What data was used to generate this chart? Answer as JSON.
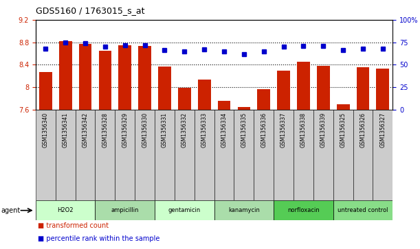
{
  "title": "GDS5160 / 1763015_s_at",
  "samples": [
    "GSM1356340",
    "GSM1356341",
    "GSM1356342",
    "GSM1356328",
    "GSM1356329",
    "GSM1356330",
    "GSM1356331",
    "GSM1356332",
    "GSM1356333",
    "GSM1356334",
    "GSM1356335",
    "GSM1356336",
    "GSM1356337",
    "GSM1356338",
    "GSM1356339",
    "GSM1356325",
    "GSM1356326",
    "GSM1356327"
  ],
  "bar_values": [
    8.27,
    8.82,
    8.77,
    8.65,
    8.75,
    8.73,
    8.37,
    7.99,
    8.13,
    7.76,
    7.65,
    7.97,
    8.29,
    8.45,
    8.38,
    7.7,
    8.35,
    8.33
  ],
  "dot_values": [
    68,
    75,
    74,
    70,
    72,
    72,
    66,
    65,
    67,
    65,
    62,
    65,
    70,
    71,
    71,
    66,
    68,
    68
  ],
  "ylim_left": [
    7.6,
    9.2
  ],
  "ylim_right": [
    0,
    100
  ],
  "yticks_left": [
    7.6,
    8.0,
    8.4,
    8.8,
    9.2
  ],
  "yticks_right": [
    0,
    25,
    50,
    75,
    100
  ],
  "bar_color": "#CC2200",
  "dot_color": "#0000CC",
  "agent_groups": [
    {
      "label": "H2O2",
      "start": 0,
      "end": 3,
      "color": "#CCFFCC"
    },
    {
      "label": "ampicillin",
      "start": 3,
      "end": 6,
      "color": "#AADDAA"
    },
    {
      "label": "gentamicin",
      "start": 6,
      "end": 9,
      "color": "#CCFFCC"
    },
    {
      "label": "kanamycin",
      "start": 9,
      "end": 12,
      "color": "#AADDAA"
    },
    {
      "label": "norfloxacin",
      "start": 12,
      "end": 15,
      "color": "#55CC55"
    },
    {
      "label": "untreated control",
      "start": 15,
      "end": 18,
      "color": "#88DD88"
    }
  ],
  "legend_red_label": "transformed count",
  "legend_blue_label": "percentile rank within the sample",
  "agent_label": "agent",
  "ybase": 7.6,
  "grid_yticks": [
    8.0,
    8.4,
    8.8
  ]
}
